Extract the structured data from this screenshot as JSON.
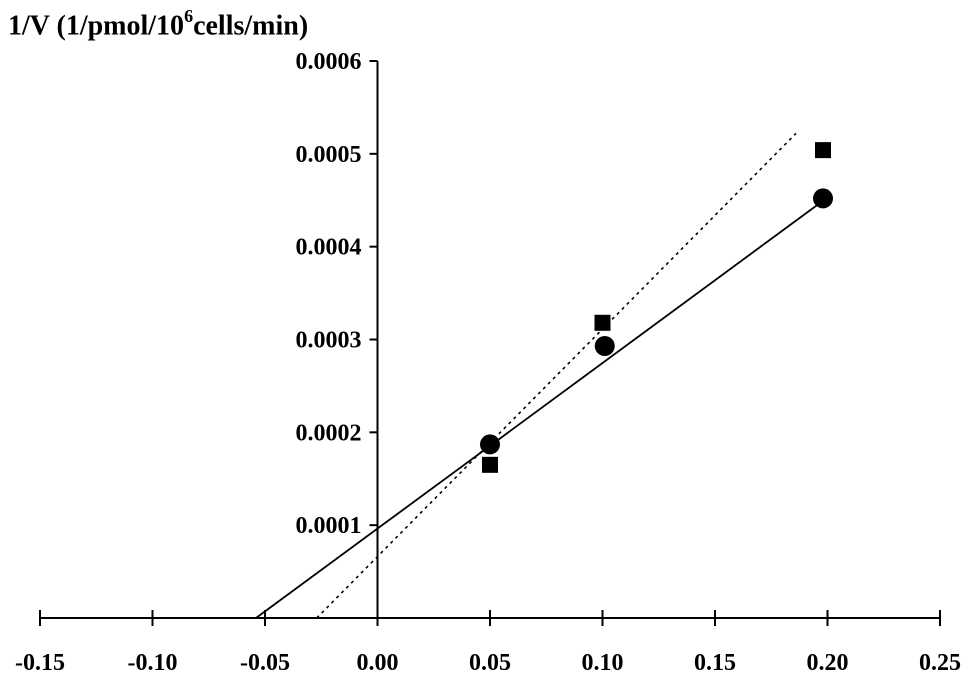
{
  "chart_data": {
    "type": "scatter",
    "title": "",
    "xlabel": "",
    "ylabel": {
      "before": "1/V (1/pmol/10",
      "superscript": "6",
      "after": "cells/min)"
    },
    "xlim": [
      -0.15,
      0.25
    ],
    "ylim": [
      0,
      0.0006
    ],
    "x_ticks": [
      "-0.15",
      "-0.10",
      "-0.05",
      "0.00",
      "0.05",
      "0.10",
      "0.15",
      "0.20",
      "0.25"
    ],
    "x_tick_values": [
      -0.15,
      -0.1,
      -0.05,
      0.0,
      0.05,
      0.1,
      0.15,
      0.2,
      0.25
    ],
    "y_ticks": [
      "0.0001",
      "0.0002",
      "0.0003",
      "0.0004",
      "0.0005",
      "0.0006"
    ],
    "y_tick_values": [
      0.0001,
      0.0002,
      0.0003,
      0.0004,
      0.0005,
      0.0006
    ],
    "grid": false,
    "series": [
      {
        "marker": "circle",
        "line_style": "solid",
        "x": [
          0.05,
          0.101,
          0.198
        ],
        "y": [
          0.000187,
          0.000293,
          0.000452
        ],
        "fit_line": {
          "x": [
            -0.054,
            0.2
          ],
          "y": [
            0.0,
            0.000453
          ]
        }
      },
      {
        "marker": "square",
        "line_style": "dotted",
        "x": [
          0.05,
          0.1,
          0.198
        ],
        "y": [
          0.000165,
          0.000318,
          0.000504
        ],
        "fit_line": {
          "x": [
            -0.027,
            0.186
          ],
          "y": [
            0.0,
            0.000522
          ]
        }
      }
    ]
  }
}
